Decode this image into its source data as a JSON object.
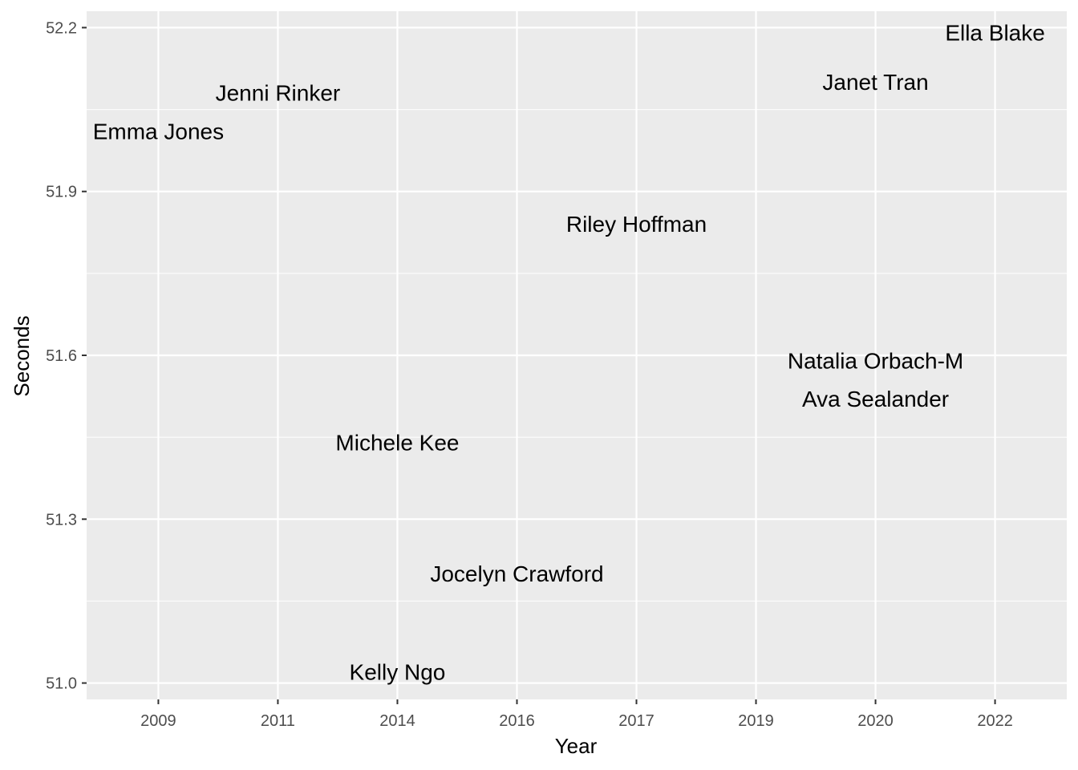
{
  "chart_data": {
    "type": "scatter",
    "title": "",
    "xlabel": "Year",
    "ylabel": "Seconds",
    "x_categories": [
      "2009",
      "2011",
      "2014",
      "2016",
      "2017",
      "2019",
      "2020",
      "2022"
    ],
    "y_ticks": [
      "51.0",
      "51.3",
      "51.6",
      "51.9",
      "52.2"
    ],
    "ylim": [
      50.97,
      52.23
    ],
    "grid": true,
    "legend": "none",
    "colors": {
      "panel": "#ebebeb",
      "grid": "#ffffff",
      "text": "#000000",
      "tick_text": "#4d4d4d"
    },
    "points": [
      {
        "label": "Emma Jones",
        "x": "2009",
        "y": 52.01
      },
      {
        "label": "Jenni Rinker",
        "x": "2011",
        "y": 52.08
      },
      {
        "label": "Michele Kee",
        "x": "2014",
        "y": 51.44
      },
      {
        "label": "Kelly Ngo",
        "x": "2014",
        "y": 51.02
      },
      {
        "label": "Jocelyn Crawford",
        "x": "2016",
        "y": 51.2
      },
      {
        "label": "Riley Hoffman",
        "x": "2017",
        "y": 51.84
      },
      {
        "label": "Natalia Orbach-M",
        "x": "2020",
        "y": 51.59
      },
      {
        "label": "Janet Tran",
        "x": "2020",
        "y": 52.1
      },
      {
        "label": "Ava Sealander",
        "x": "2020",
        "y": 51.52
      },
      {
        "label": "Ella Blake",
        "x": "2022",
        "y": 52.19
      }
    ]
  }
}
